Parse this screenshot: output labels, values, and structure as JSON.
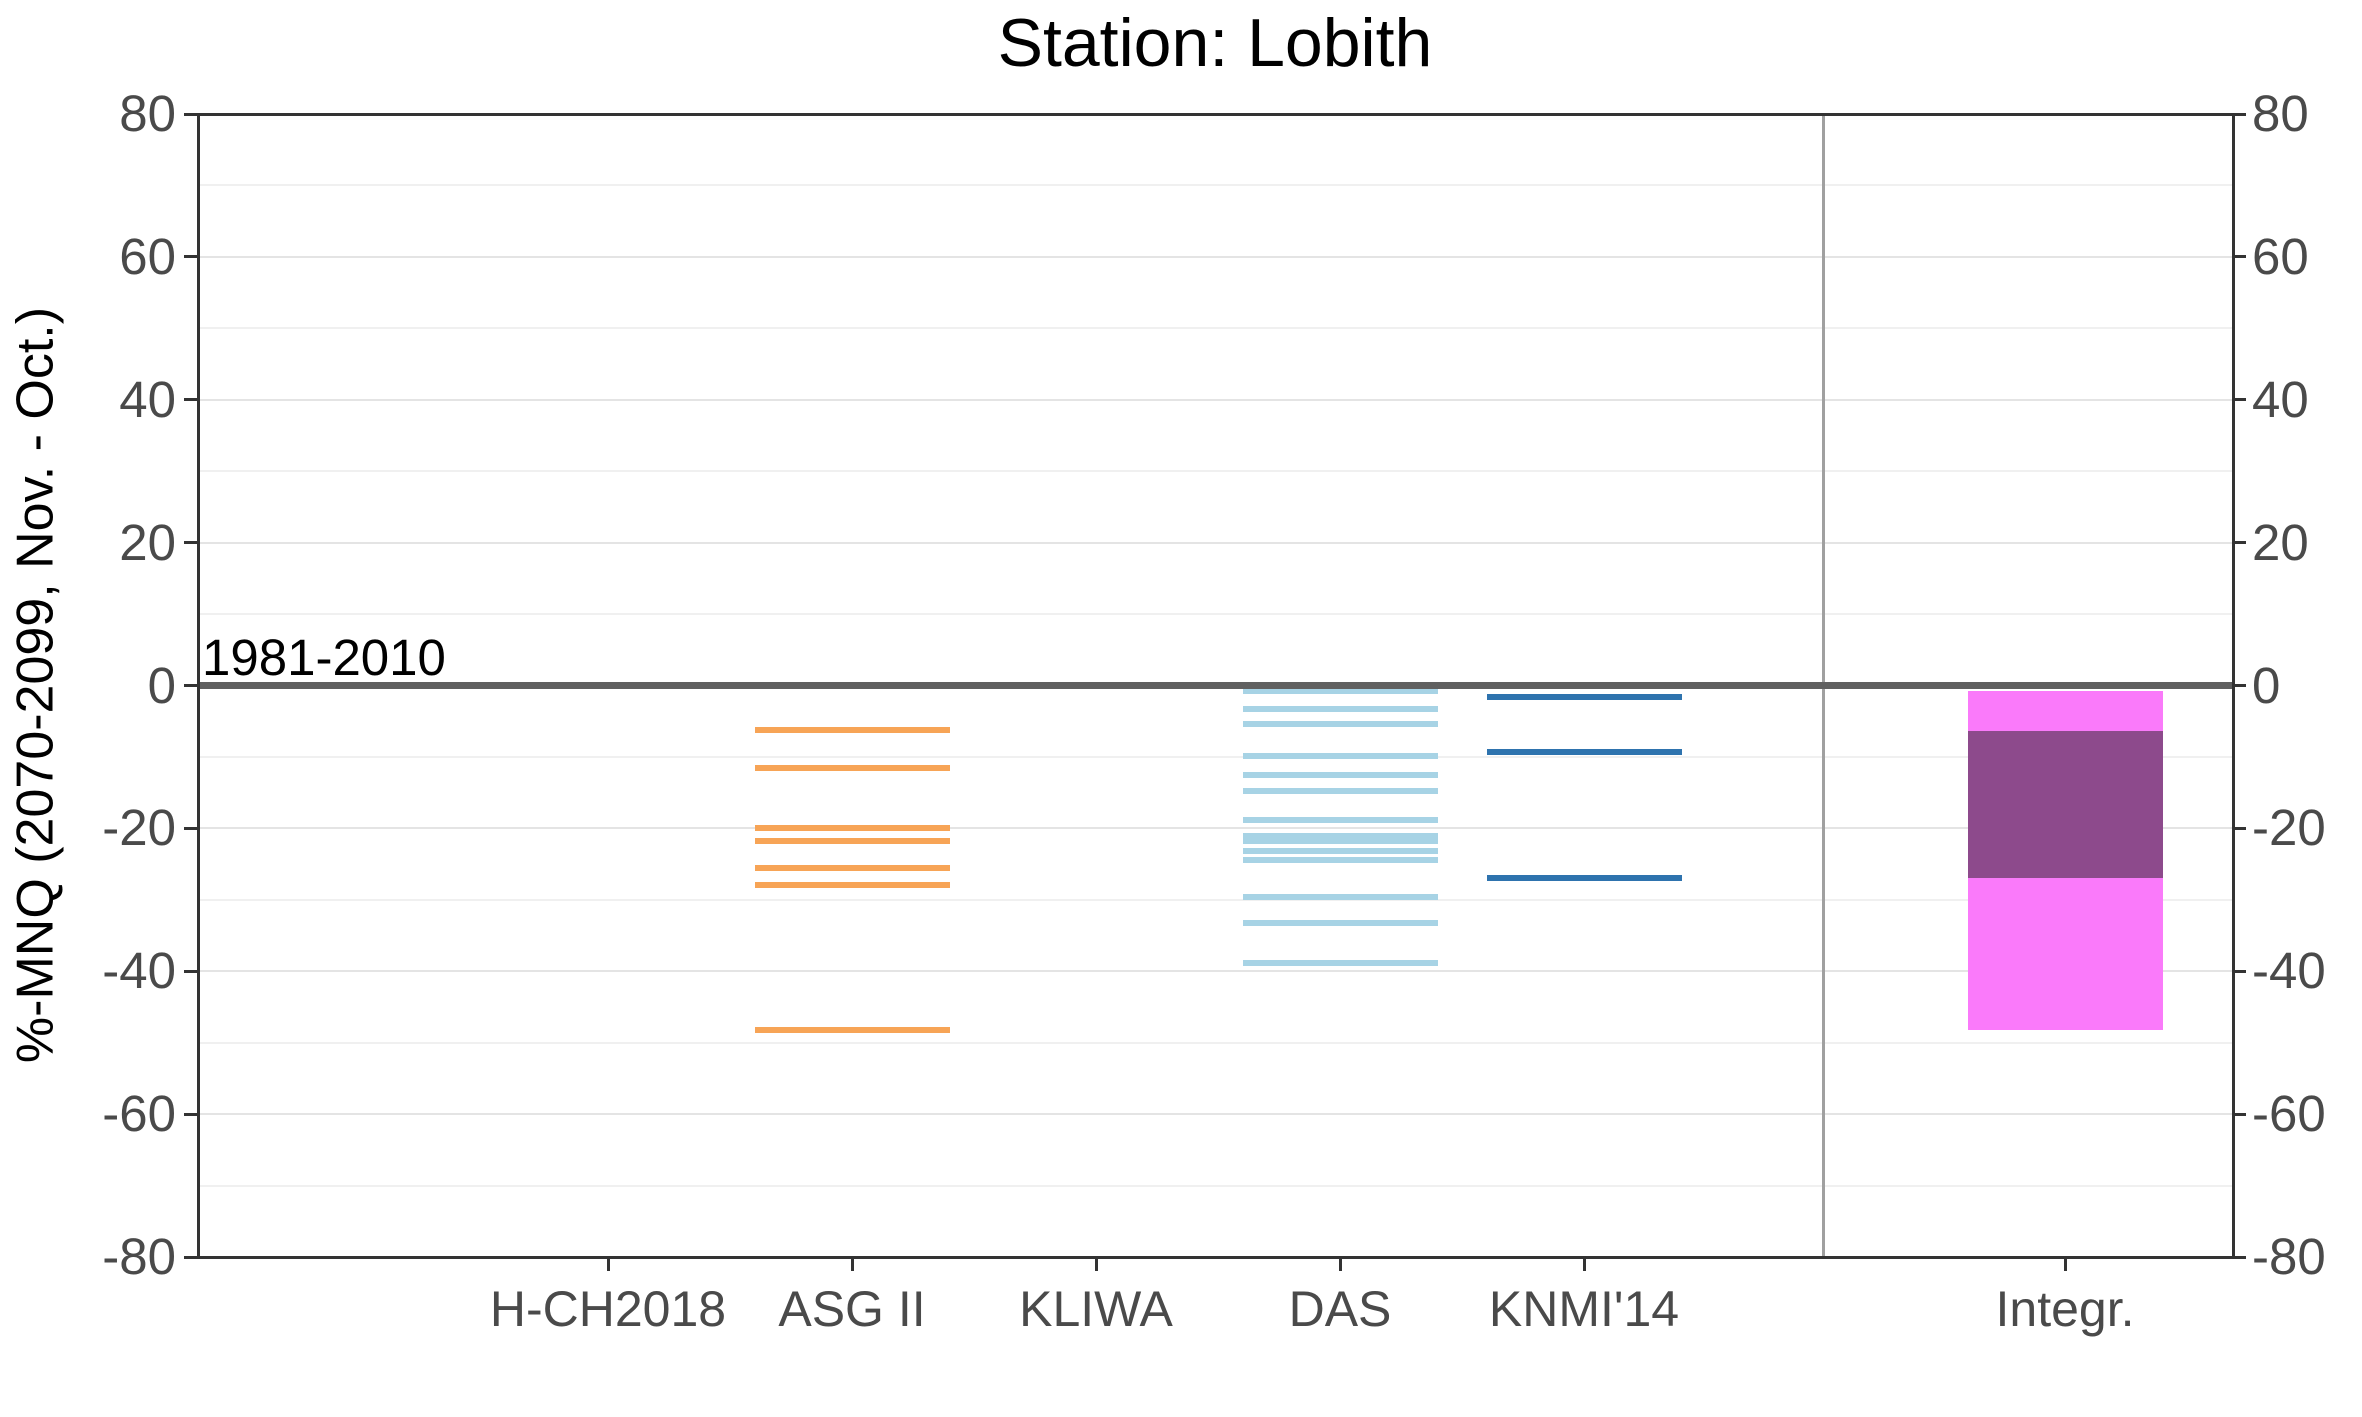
{
  "title": "Station: Lobith",
  "chart_data": {
    "type": "scatter",
    "marker": "horizontal-dash",
    "title": "Station: Lobith",
    "ylabel": "%-MNQ (2070-2099, Nov. - Oct.)",
    "xlabel": "",
    "ylim": [
      -80,
      80
    ],
    "yticks": [
      80,
      60,
      40,
      20,
      0,
      -20,
      -40,
      -60,
      -80
    ],
    "y_axis_sides": [
      "left",
      "right"
    ],
    "major_gridline_step": 20,
    "minor_gridline_step": 10,
    "grid": true,
    "legend": "none",
    "categories": [
      "H-CH2018",
      "ASG II",
      "KLIWA",
      "DAS",
      "KNMI'14"
    ],
    "series": [
      {
        "name": "H-CH2018",
        "values": []
      },
      {
        "name": "ASG II",
        "color": "#F7A456",
        "values": [
          -6.2,
          -11.6,
          -19.9,
          -21.7,
          -25.5,
          -27.9,
          -48.2
        ]
      },
      {
        "name": "KLIWA",
        "values": []
      },
      {
        "name": "DAS",
        "color": "#A7D3E5",
        "values": [
          -0.7,
          -3.3,
          -5.4,
          -9.9,
          -12.5,
          -14.7,
          -18.8,
          -21.1,
          -21.8,
          -23.2,
          -24.4,
          -29.6,
          -33.3,
          -38.9
        ]
      },
      {
        "name": "KNMI'14",
        "color": "#2E73AE",
        "values": [
          -1.6,
          -9.3,
          -26.9
        ]
      }
    ],
    "integrated_bar": {
      "label": "Integr.",
      "outer_range": [
        -0.7,
        -48.2
      ],
      "inner_range": [
        -6.3,
        -26.9
      ],
      "outer_color": "#FA7AFA",
      "inner_color": "#8D4A8C"
    },
    "reference_line": {
      "value": 0,
      "label": "1981-2010",
      "color": "#606060"
    },
    "separator": {
      "between": [
        "KNMI'14",
        "Integr."
      ],
      "color": "#A0A0A0"
    }
  }
}
